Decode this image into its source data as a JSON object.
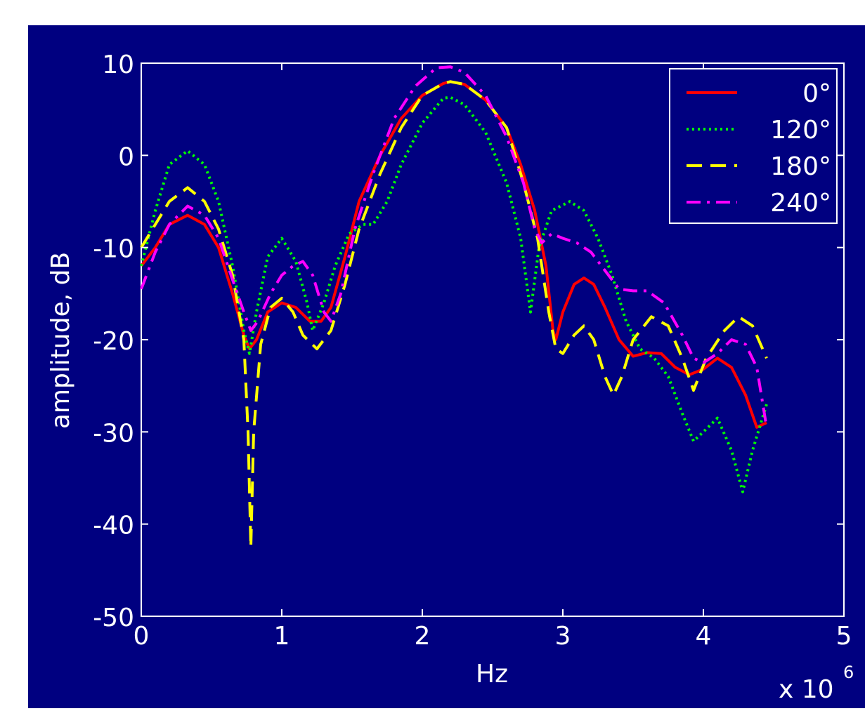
{
  "chart_data": {
    "type": "line",
    "title": "",
    "xlabel": "Hz",
    "ylabel": "amplitude, dB",
    "x_multiplier_label": "x 10",
    "x_multiplier_exponent": "6",
    "xlim": [
      0,
      5
    ],
    "ylim": [
      -50,
      10
    ],
    "xticks": [
      "0",
      "1",
      "2",
      "3",
      "4",
      "5"
    ],
    "yticks": [
      "10",
      "0",
      "-10",
      "-20",
      "-30",
      "-40",
      "-50"
    ],
    "grid": false,
    "legend_position": "top-right",
    "colors": {
      "plot_background": "#000080",
      "axes": "#ffffff",
      "text": "#ffffff"
    },
    "series": [
      {
        "name": "0°",
        "color": "#ff0000",
        "dash": "solid",
        "points": [
          [
            0,
            -12
          ],
          [
            0.1,
            -10
          ],
          [
            0.2,
            -7.5
          ],
          [
            0.33,
            -6.5
          ],
          [
            0.45,
            -7.5
          ],
          [
            0.55,
            -10
          ],
          [
            0.65,
            -15
          ],
          [
            0.73,
            -19.5
          ],
          [
            0.77,
            -21
          ],
          [
            0.82,
            -20
          ],
          [
            0.9,
            -17
          ],
          [
            1.0,
            -16
          ],
          [
            1.1,
            -16.5
          ],
          [
            1.2,
            -18
          ],
          [
            1.28,
            -18
          ],
          [
            1.35,
            -16.5
          ],
          [
            1.45,
            -11
          ],
          [
            1.55,
            -5
          ],
          [
            1.7,
            0
          ],
          [
            1.85,
            4
          ],
          [
            2.0,
            6.5
          ],
          [
            2.15,
            7.8
          ],
          [
            2.2,
            8
          ],
          [
            2.3,
            7.7
          ],
          [
            2.45,
            6
          ],
          [
            2.6,
            3
          ],
          [
            2.7,
            -1
          ],
          [
            2.8,
            -6
          ],
          [
            2.88,
            -12
          ],
          [
            2.93,
            -19
          ],
          [
            2.95,
            -20
          ],
          [
            3.0,
            -17
          ],
          [
            3.08,
            -14
          ],
          [
            3.15,
            -13.3
          ],
          [
            3.22,
            -14
          ],
          [
            3.3,
            -16.5
          ],
          [
            3.4,
            -20
          ],
          [
            3.5,
            -21.8
          ],
          [
            3.6,
            -21.4
          ],
          [
            3.7,
            -21.5
          ],
          [
            3.8,
            -23
          ],
          [
            3.9,
            -23.8
          ],
          [
            4.0,
            -23.2
          ],
          [
            4.1,
            -22
          ],
          [
            4.2,
            -23
          ],
          [
            4.3,
            -26
          ],
          [
            4.38,
            -29.5
          ],
          [
            4.45,
            -29
          ]
        ]
      },
      {
        "name": "120°",
        "color": "#00ff00",
        "dash": "dotted",
        "points": [
          [
            0,
            -12
          ],
          [
            0.1,
            -6
          ],
          [
            0.2,
            -1
          ],
          [
            0.33,
            0.5
          ],
          [
            0.45,
            -1
          ],
          [
            0.55,
            -5
          ],
          [
            0.65,
            -12
          ],
          [
            0.73,
            -19
          ],
          [
            0.77,
            -21.5
          ],
          [
            0.82,
            -17
          ],
          [
            0.9,
            -11
          ],
          [
            1.0,
            -9
          ],
          [
            1.1,
            -11.5
          ],
          [
            1.18,
            -16
          ],
          [
            1.22,
            -19
          ],
          [
            1.3,
            -16
          ],
          [
            1.38,
            -12
          ],
          [
            1.48,
            -8.5
          ],
          [
            1.58,
            -7.5
          ],
          [
            1.65,
            -7.5
          ],
          [
            1.75,
            -5
          ],
          [
            1.85,
            -1
          ],
          [
            2.0,
            3.5
          ],
          [
            2.15,
            6.2
          ],
          [
            2.2,
            6.3
          ],
          [
            2.3,
            5.5
          ],
          [
            2.45,
            2.5
          ],
          [
            2.6,
            -3
          ],
          [
            2.7,
            -9
          ],
          [
            2.77,
            -17
          ],
          [
            2.83,
            -10
          ],
          [
            2.92,
            -6
          ],
          [
            3.05,
            -5
          ],
          [
            3.15,
            -6
          ],
          [
            3.25,
            -9
          ],
          [
            3.35,
            -13
          ],
          [
            3.45,
            -18
          ],
          [
            3.55,
            -21
          ],
          [
            3.65,
            -22
          ],
          [
            3.75,
            -24
          ],
          [
            3.85,
            -28
          ],
          [
            3.93,
            -31
          ],
          [
            4.0,
            -30
          ],
          [
            4.1,
            -28.5
          ],
          [
            4.2,
            -32
          ],
          [
            4.28,
            -36.5
          ],
          [
            4.35,
            -32
          ],
          [
            4.45,
            -27
          ]
        ]
      },
      {
        "name": "180°",
        "color": "#ffff00",
        "dash": "dashed",
        "points": [
          [
            0,
            -10
          ],
          [
            0.1,
            -7.5
          ],
          [
            0.2,
            -5
          ],
          [
            0.33,
            -3.5
          ],
          [
            0.45,
            -5
          ],
          [
            0.55,
            -8
          ],
          [
            0.65,
            -13
          ],
          [
            0.73,
            -20
          ],
          [
            0.76,
            -30
          ],
          [
            0.78,
            -42.5
          ],
          [
            0.8,
            -30
          ],
          [
            0.85,
            -20.5
          ],
          [
            0.92,
            -16.5
          ],
          [
            1.0,
            -15.5
          ],
          [
            1.08,
            -17
          ],
          [
            1.15,
            -19.5
          ],
          [
            1.25,
            -21
          ],
          [
            1.35,
            -19
          ],
          [
            1.45,
            -14
          ],
          [
            1.55,
            -8
          ],
          [
            1.7,
            -2
          ],
          [
            1.85,
            3
          ],
          [
            2.0,
            6.5
          ],
          [
            2.15,
            7.8
          ],
          [
            2.2,
            8
          ],
          [
            2.3,
            7.7
          ],
          [
            2.45,
            6
          ],
          [
            2.6,
            3
          ],
          [
            2.72,
            -3
          ],
          [
            2.82,
            -9
          ],
          [
            2.9,
            -17
          ],
          [
            2.95,
            -21
          ],
          [
            3.0,
            -21.5
          ],
          [
            3.08,
            -19.5
          ],
          [
            3.15,
            -18.5
          ],
          [
            3.22,
            -20
          ],
          [
            3.3,
            -24
          ],
          [
            3.36,
            -26
          ],
          [
            3.42,
            -24
          ],
          [
            3.5,
            -20
          ],
          [
            3.63,
            -17.5
          ],
          [
            3.75,
            -18.5
          ],
          [
            3.85,
            -22
          ],
          [
            3.93,
            -25.5
          ],
          [
            4.02,
            -22
          ],
          [
            4.15,
            -19
          ],
          [
            4.25,
            -17.5
          ],
          [
            4.35,
            -18.5
          ],
          [
            4.45,
            -22
          ]
        ]
      },
      {
        "name": "240°",
        "color": "#ff00ff",
        "dash": "dashdot",
        "points": [
          [
            0,
            -14.5
          ],
          [
            0.1,
            -10.5
          ],
          [
            0.2,
            -7.5
          ],
          [
            0.33,
            -5.5
          ],
          [
            0.45,
            -6.5
          ],
          [
            0.55,
            -9
          ],
          [
            0.65,
            -13.5
          ],
          [
            0.73,
            -17
          ],
          [
            0.78,
            -19
          ],
          [
            0.83,
            -18
          ],
          [
            0.92,
            -15
          ],
          [
            1.0,
            -13
          ],
          [
            1.08,
            -12
          ],
          [
            1.15,
            -11.5
          ],
          [
            1.22,
            -13
          ],
          [
            1.3,
            -17
          ],
          [
            1.35,
            -18
          ],
          [
            1.42,
            -15
          ],
          [
            1.52,
            -8
          ],
          [
            1.65,
            -2
          ],
          [
            1.8,
            4
          ],
          [
            1.95,
            7.5
          ],
          [
            2.1,
            9.5
          ],
          [
            2.2,
            9.6
          ],
          [
            2.3,
            9
          ],
          [
            2.45,
            6.5
          ],
          [
            2.6,
            2
          ],
          [
            2.72,
            -3
          ],
          [
            2.8,
            -8
          ],
          [
            2.85,
            -9.5
          ],
          [
            2.92,
            -8.5
          ],
          [
            3.0,
            -9
          ],
          [
            3.1,
            -9.5
          ],
          [
            3.2,
            -10.5
          ],
          [
            3.3,
            -12.5
          ],
          [
            3.4,
            -14.5
          ],
          [
            3.5,
            -14.7
          ],
          [
            3.6,
            -14.7
          ],
          [
            3.72,
            -16
          ],
          [
            3.85,
            -19.5
          ],
          [
            3.93,
            -22
          ],
          [
            4.0,
            -22.5
          ],
          [
            4.1,
            -21.5
          ],
          [
            4.2,
            -20
          ],
          [
            4.3,
            -20.5
          ],
          [
            4.38,
            -23
          ],
          [
            4.45,
            -29.5
          ]
        ]
      }
    ]
  }
}
